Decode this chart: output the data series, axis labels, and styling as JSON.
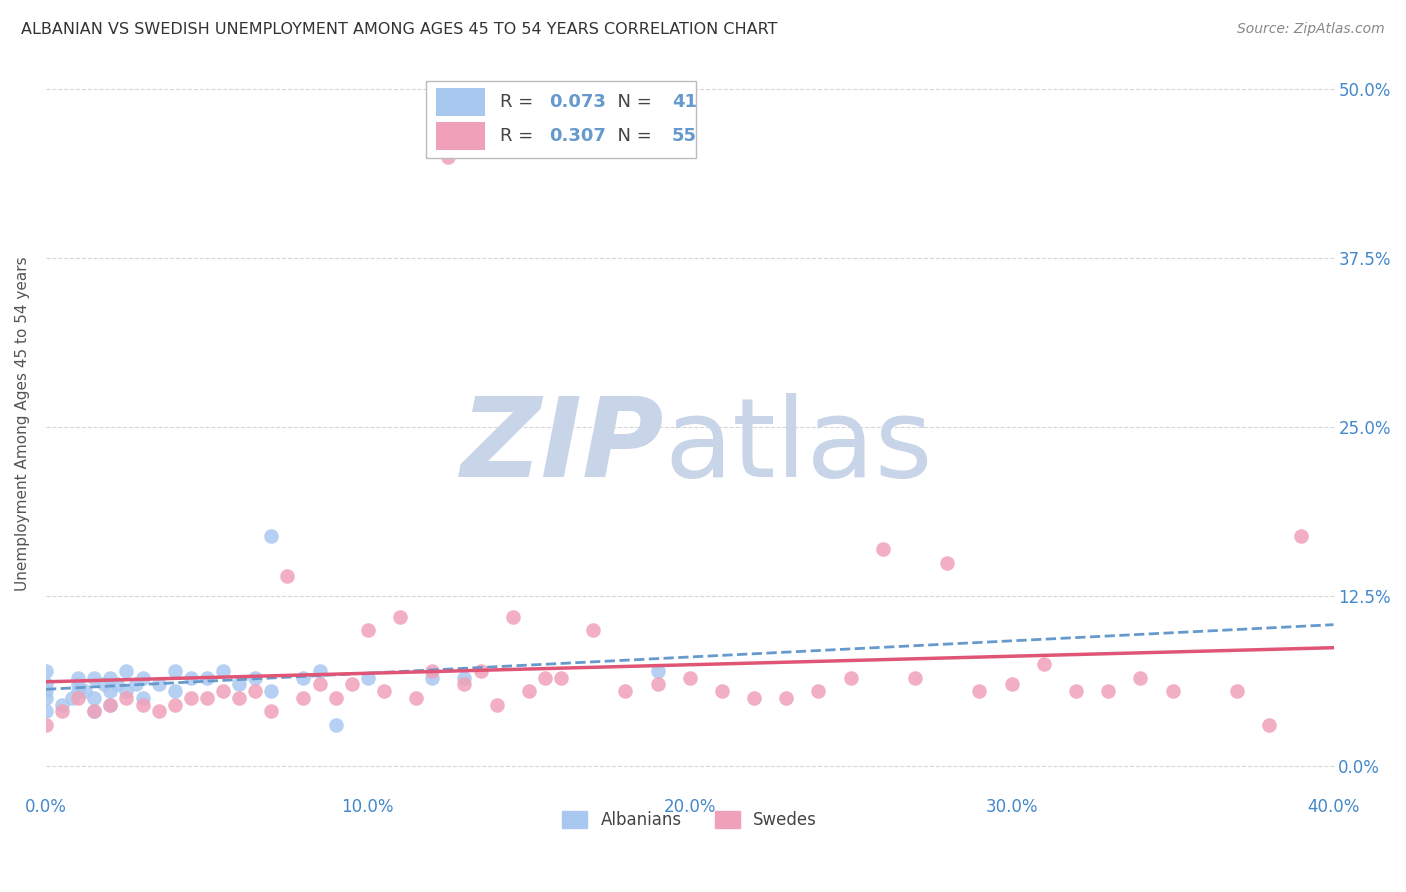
{
  "title": "ALBANIAN VS SWEDISH UNEMPLOYMENT AMONG AGES 45 TO 54 YEARS CORRELATION CHART",
  "source": "Source: ZipAtlas.com",
  "ylabel": "Unemployment Among Ages 45 to 54 years",
  "xlim": [
    0.0,
    0.4
  ],
  "ylim": [
    -0.02,
    0.525
  ],
  "albanians_R": 0.073,
  "albanians_N": 41,
  "swedes_R": 0.307,
  "swedes_N": 55,
  "albanian_color": "#a8c8f0",
  "swedish_color": "#f0a0b8",
  "trendline_albanian_color": "#6699cc",
  "trendline_swedish_color": "#e05575",
  "watermark_zip_color": "#c8d4e8",
  "watermark_atlas_color": "#c8d4e8",
  "albanians_x": [
    0.0,
    0.0,
    0.0,
    0.0,
    0.0,
    0.005,
    0.008,
    0.01,
    0.01,
    0.01,
    0.012,
    0.015,
    0.015,
    0.015,
    0.018,
    0.02,
    0.02,
    0.02,
    0.022,
    0.025,
    0.025,
    0.028,
    0.03,
    0.03,
    0.035,
    0.04,
    0.04,
    0.045,
    0.05,
    0.055,
    0.06,
    0.065,
    0.07,
    0.07,
    0.08,
    0.085,
    0.09,
    0.1,
    0.12,
    0.13,
    0.19
  ],
  "albanians_y": [
    0.04,
    0.05,
    0.055,
    0.06,
    0.07,
    0.045,
    0.05,
    0.055,
    0.06,
    0.065,
    0.055,
    0.04,
    0.05,
    0.065,
    0.06,
    0.045,
    0.055,
    0.065,
    0.06,
    0.055,
    0.07,
    0.06,
    0.05,
    0.065,
    0.06,
    0.055,
    0.07,
    0.065,
    0.065,
    0.07,
    0.06,
    0.065,
    0.055,
    0.17,
    0.065,
    0.07,
    0.03,
    0.065,
    0.065,
    0.065,
    0.07
  ],
  "swedes_x": [
    0.0,
    0.005,
    0.01,
    0.015,
    0.02,
    0.025,
    0.03,
    0.035,
    0.04,
    0.045,
    0.05,
    0.055,
    0.06,
    0.065,
    0.07,
    0.075,
    0.08,
    0.085,
    0.09,
    0.095,
    0.1,
    0.105,
    0.11,
    0.115,
    0.12,
    0.125,
    0.13,
    0.135,
    0.14,
    0.145,
    0.15,
    0.155,
    0.16,
    0.17,
    0.18,
    0.19,
    0.2,
    0.21,
    0.22,
    0.23,
    0.24,
    0.25,
    0.26,
    0.27,
    0.28,
    0.29,
    0.3,
    0.31,
    0.32,
    0.33,
    0.34,
    0.35,
    0.37,
    0.38,
    0.39
  ],
  "swedes_y": [
    0.03,
    0.04,
    0.05,
    0.04,
    0.045,
    0.05,
    0.045,
    0.04,
    0.045,
    0.05,
    0.05,
    0.055,
    0.05,
    0.055,
    0.04,
    0.14,
    0.05,
    0.06,
    0.05,
    0.06,
    0.1,
    0.055,
    0.11,
    0.05,
    0.07,
    0.45,
    0.06,
    0.07,
    0.045,
    0.11,
    0.055,
    0.065,
    0.065,
    0.1,
    0.055,
    0.06,
    0.065,
    0.055,
    0.05,
    0.05,
    0.055,
    0.065,
    0.16,
    0.065,
    0.15,
    0.055,
    0.06,
    0.075,
    0.055,
    0.055,
    0.065,
    0.055,
    0.055,
    0.03,
    0.17
  ],
  "x_tick_vals": [
    0.0,
    0.1,
    0.2,
    0.3,
    0.4
  ],
  "x_tick_labels": [
    "0.0%",
    "10.0%",
    "20.0%",
    "30.0%",
    "40.0%"
  ],
  "y_tick_vals": [
    0.0,
    0.125,
    0.25,
    0.375,
    0.5
  ],
  "y_tick_labels": [
    "0.0%",
    "12.5%",
    "25.0%",
    "37.5%",
    "50.0%"
  ],
  "grid_color": "#cccccc",
  "background_color": "#ffffff",
  "title_color": "#333333",
  "axis_label_color": "#555555",
  "tick_label_color": "#4488cc"
}
